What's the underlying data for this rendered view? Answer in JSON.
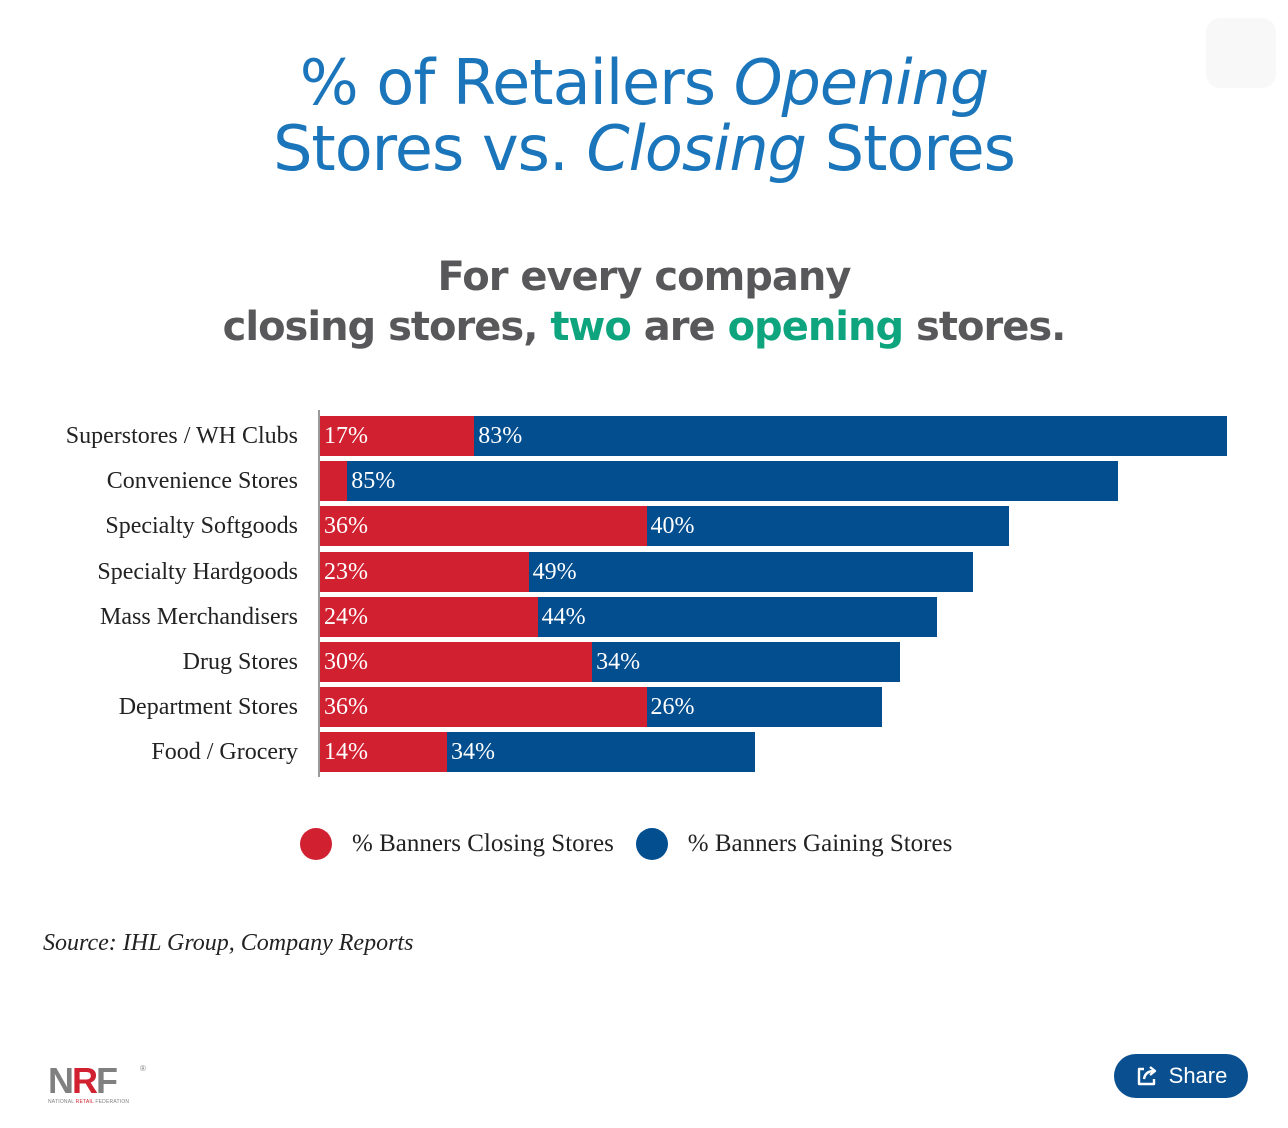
{
  "header": {
    "title_part1": "% of Retailers ",
    "title_italic1": "Opening",
    "title_part2": "Stores vs. ",
    "title_italic2": "Closing",
    "title_part3": " Stores"
  },
  "subheader": {
    "line1": "For every company",
    "line2_a": "closing stores, ",
    "line2_hl1": "two",
    "line2_b": " are ",
    "line2_hl2": "opening",
    "line2_c": " stores."
  },
  "chart_data": {
    "type": "bar",
    "orientation": "horizontal",
    "stacked": true,
    "categories": [
      "Superstores / WH Clubs",
      "Convenience Stores",
      "Specialty Softgoods",
      "Specialty Hardgoods",
      "Mass Merchandisers",
      "Drug Stores",
      "Department Stores",
      "Food / Grocery"
    ],
    "series": [
      {
        "name": "% Banners Closing Stores",
        "color": "#d12131",
        "values": [
          17,
          3,
          36,
          23,
          24,
          30,
          36,
          14
        ],
        "labels": [
          "17%",
          "",
          "36%",
          "23%",
          "24%",
          "30%",
          "36%",
          "14%"
        ]
      },
      {
        "name": "% Banners Gaining Stores",
        "color": "#024e8f",
        "values": [
          83,
          85,
          40,
          49,
          44,
          34,
          26,
          34
        ],
        "labels": [
          "83%",
          "85%",
          "40%",
          "49%",
          "44%",
          "34%",
          "26%",
          "34%"
        ]
      }
    ],
    "xlim": [
      0,
      100
    ],
    "grid": false,
    "legend_position": "bottom"
  },
  "footer": {
    "source": "Source: IHL Group, Company Reports",
    "logo_text_1": "N",
    "logo_text_2": "R",
    "logo_text_3": "F",
    "logo_reg": "®",
    "logo_sub_1": "NATIONAL ",
    "logo_sub_2": "RETAIL",
    "logo_sub_3": " FEDERATION",
    "share_label": "Share"
  }
}
